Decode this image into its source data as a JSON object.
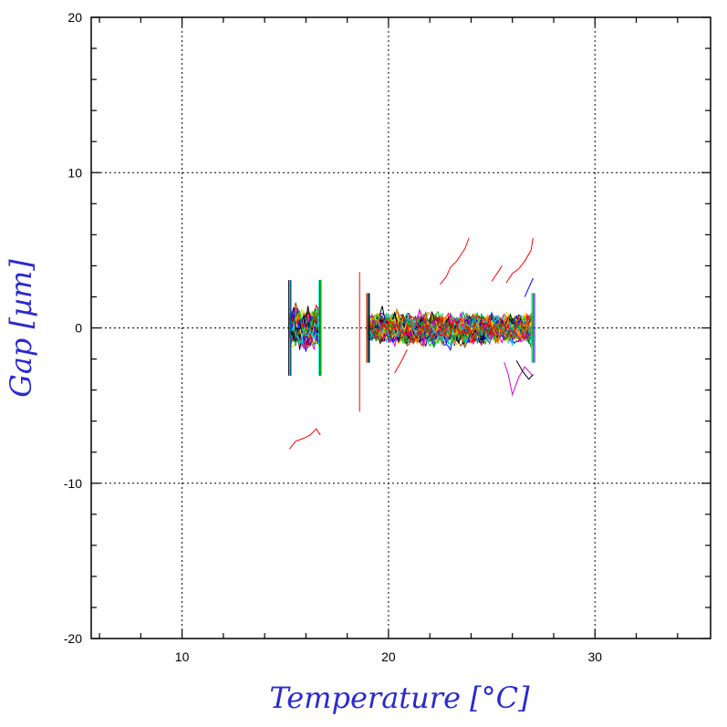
{
  "chart_data": {
    "type": "line",
    "title": "",
    "xlabel": "Temperature [°C]",
    "ylabel": "Gap [µm]",
    "xlim": [
      5.6,
      35.6
    ],
    "ylim": [
      -20,
      20
    ],
    "x_ticks": [
      10,
      20,
      30
    ],
    "y_ticks": [
      -20,
      -10,
      0,
      10,
      20
    ],
    "x_tick_labels": [
      "10",
      "20",
      "30"
    ],
    "y_tick_labels": [
      "-20",
      "-10",
      "0",
      "10",
      "20"
    ],
    "grid": true,
    "legend": "none",
    "palette": [
      "#ff0000",
      "#0000ff",
      "#000000",
      "#00cc00",
      "#00dddd",
      "#dd00dd",
      "#dddd00",
      "#ff8800",
      "#008888",
      "#884400"
    ],
    "segments": [
      {
        "x_range": [
          15.2,
          16.7
        ],
        "y_spread": 2.2,
        "count": 55
      },
      {
        "x_range": [
          19.0,
          27.0
        ],
        "y_spread": 1.6,
        "count": 90
      }
    ],
    "series": [
      {
        "x": [
          15.2,
          15.5,
          15.9,
          16.2,
          16.5,
          16.7
        ],
        "y": [
          -7.8,
          -7.3,
          -7.1,
          -6.9,
          -6.5,
          -6.9
        ],
        "color": "#ff0000"
      },
      {
        "x": [
          22.5,
          22.8,
          23.0,
          23.3,
          23.5,
          23.7,
          23.9
        ],
        "y": [
          2.8,
          3.3,
          3.9,
          4.3,
          4.7,
          5.1,
          5.8
        ],
        "color": "#ff0000"
      },
      {
        "x": [
          25.7,
          26.0,
          26.3,
          26.6,
          26.9,
          27.0
        ],
        "y": [
          2.9,
          3.5,
          3.8,
          4.3,
          5.0,
          5.8
        ],
        "color": "#ff0000"
      },
      {
        "x": [
          25.6,
          25.8,
          26.0,
          26.3,
          26.6,
          27.0
        ],
        "y": [
          -2.2,
          -3.0,
          -4.3,
          -3.2,
          -2.5,
          -3.1
        ],
        "color": "#dd00dd"
      },
      {
        "x": [
          26.2,
          26.5,
          26.8,
          27.0
        ],
        "y": [
          -2.1,
          -2.8,
          -3.3,
          -3.0
        ],
        "color": "#000000"
      },
      {
        "x": [
          25.0,
          25.3,
          25.5
        ],
        "y": [
          3.0,
          3.6,
          4.0
        ],
        "color": "#ff0000"
      },
      {
        "x": [
          18.6,
          18.6
        ],
        "y": [
          -5.4,
          3.6
        ],
        "color": "#ff0000"
      },
      {
        "x": [
          20.3,
          20.6,
          20.9
        ],
        "y": [
          -2.9,
          -2.2,
          -1.4
        ],
        "color": "#ff0000"
      },
      {
        "x": [
          26.6,
          26.8,
          27.0
        ],
        "y": [
          2.0,
          2.6,
          3.2
        ],
        "color": "#0000ff"
      }
    ]
  }
}
